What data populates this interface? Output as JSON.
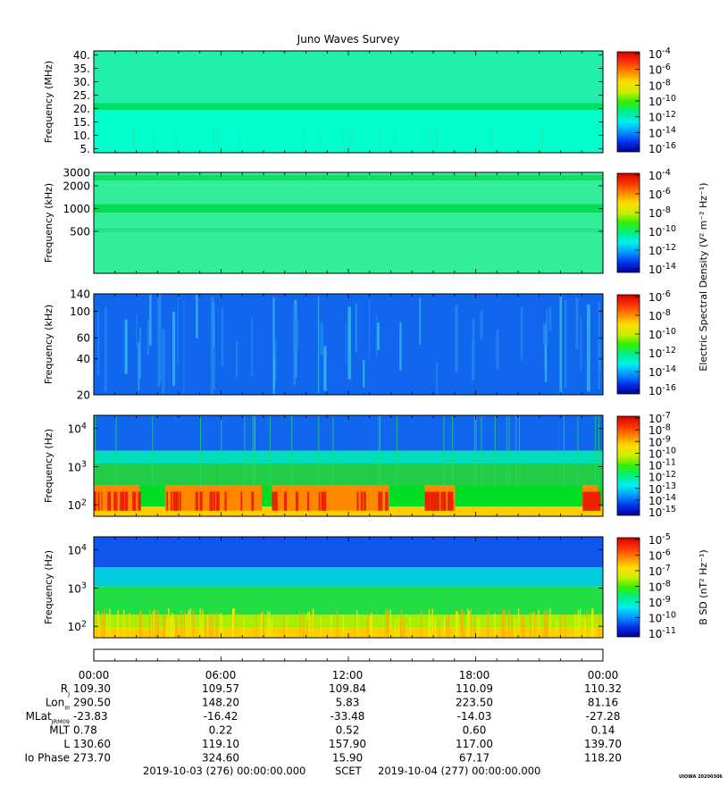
{
  "title": "Juno Waves Survey",
  "chart_data": [
    {
      "type": "heatmap",
      "name": "panel-1",
      "ylabel": "Frequency (MHz)",
      "ylim": [
        3.5,
        41.5
      ],
      "yscale": "linear",
      "yticks": [
        {
          "v": 40,
          "l": "40."
        },
        {
          "v": 35,
          "l": "35."
        },
        {
          "v": 30,
          "l": "30."
        },
        {
          "v": 25,
          "l": "25."
        },
        {
          "v": 20,
          "l": "20."
        },
        {
          "v": 15,
          "l": "15."
        },
        {
          "v": 10,
          "l": "10."
        },
        {
          "v": 5,
          "l": "5."
        }
      ],
      "colorbar": {
        "ticks": [
          {
            "m": "10",
            "e": "-4"
          },
          {
            "m": "10",
            "e": "-6"
          },
          {
            "m": "10",
            "e": "-8"
          },
          {
            "m": "10",
            "e": "-10"
          },
          {
            "m": "10",
            "e": "-12"
          },
          {
            "m": "10",
            "e": "-14"
          },
          {
            "m": "10",
            "e": "-16"
          }
        ],
        "label": ""
      },
      "bands": [
        {
          "f0": 3.5,
          "f1": 19.5,
          "c": "#00ffcc"
        },
        {
          "f0": 19.5,
          "f1": 22.0,
          "c": "#00dd66"
        },
        {
          "f0": 22.0,
          "f1": 41.5,
          "c": "#22f0a8"
        }
      ]
    },
    {
      "type": "heatmap",
      "name": "panel-2",
      "ylabel": "Frequency (kHz)",
      "ylim": [
        140,
        3000
      ],
      "yscale": "log",
      "yticks": [
        {
          "v": 3000,
          "l": "3000"
        },
        {
          "v": 2000,
          "l": "2000"
        },
        {
          "v": 1000,
          "l": "1000"
        },
        {
          "v": 500,
          "l": "500"
        }
      ],
      "colorbar": {
        "ticks": [
          {
            "m": "10",
            "e": "-4"
          },
          {
            "m": "10",
            "e": "-6"
          },
          {
            "m": "10",
            "e": "-8"
          },
          {
            "m": "10",
            "e": "-10"
          },
          {
            "m": "10",
            "e": "-12"
          },
          {
            "m": "10",
            "e": "-14"
          }
        ],
        "label": ""
      },
      "bands": [
        {
          "f0": 140,
          "f1": 480,
          "c": "#33ee99"
        },
        {
          "f0": 480,
          "f1": 560,
          "c": "#22e388"
        },
        {
          "f0": 560,
          "f1": 880,
          "c": "#33ee99"
        },
        {
          "f0": 880,
          "f1": 1150,
          "c": "#00dd55"
        },
        {
          "f0": 1150,
          "f1": 2350,
          "c": "#33ee99"
        },
        {
          "f0": 2350,
          "f1": 2800,
          "c": "#11dd66"
        },
        {
          "f0": 2800,
          "f1": 3000,
          "c": "#44eeaa"
        }
      ]
    },
    {
      "type": "heatmap",
      "name": "panel-3",
      "ylabel": "Frequency (kHz)",
      "ylim": [
        20,
        140
      ],
      "yscale": "log",
      "yticks": [
        {
          "v": 140,
          "l": "140"
        },
        {
          "v": 100,
          "l": "100"
        },
        {
          "v": 60,
          "l": "60"
        },
        {
          "v": 40,
          "l": "40"
        },
        {
          "v": 20,
          "l": "20"
        }
      ],
      "colorbar": {
        "ticks": [
          {
            "m": "10",
            "e": "-6"
          },
          {
            "m": "10",
            "e": "-8"
          },
          {
            "m": "10",
            "e": "-10"
          },
          {
            "m": "10",
            "e": "-12"
          },
          {
            "m": "10",
            "e": "-14"
          },
          {
            "m": "10",
            "e": "-16"
          }
        ],
        "label": "Electric Spectral Density (V² m⁻² Hz⁻¹)"
      },
      "bands": [
        {
          "f0": 20,
          "f1": 140,
          "c": "#1166ee"
        }
      ]
    },
    {
      "type": "heatmap",
      "name": "panel-4",
      "ylabel": "Frequency (Hz)",
      "ylim": [
        50,
        22000
      ],
      "yscale": "log",
      "yticks": [
        {
          "v": 10000,
          "m": "10",
          "e": "4"
        },
        {
          "v": 1000,
          "m": "10",
          "e": "3"
        },
        {
          "v": 100,
          "m": "10",
          "e": "2"
        }
      ],
      "colorbar": {
        "ticks": [
          {
            "m": "10",
            "e": "-7"
          },
          {
            "m": "10",
            "e": "-8"
          },
          {
            "m": "10",
            "e": "-9"
          },
          {
            "m": "10",
            "e": "-10"
          },
          {
            "m": "10",
            "e": "-11"
          },
          {
            "m": "10",
            "e": "-12"
          },
          {
            "m": "10",
            "e": "-13"
          },
          {
            "m": "10",
            "e": "-14"
          },
          {
            "m": "10",
            "e": "-15"
          }
        ],
        "label": ""
      },
      "bands": [
        {
          "f0": 50,
          "f1": 90,
          "c": "#ffcc00"
        },
        {
          "f0": 90,
          "f1": 320,
          "c": "#00dd22"
        },
        {
          "f0": 320,
          "f1": 1200,
          "c": "#22cc44"
        },
        {
          "f0": 1200,
          "f1": 2600,
          "c": "#00ddbb"
        },
        {
          "f0": 2600,
          "f1": 22000,
          "c": "#1166ee"
        }
      ]
    },
    {
      "type": "heatmap",
      "name": "panel-5",
      "ylabel": "Frequency (Hz)",
      "ylim": [
        50,
        22000
      ],
      "yscale": "log",
      "yticks": [
        {
          "v": 10000,
          "m": "10",
          "e": "4"
        },
        {
          "v": 1000,
          "m": "10",
          "e": "3"
        },
        {
          "v": 100,
          "m": "10",
          "e": "2"
        }
      ],
      "colorbar": {
        "ticks": [
          {
            "m": "10",
            "e": "-5"
          },
          {
            "m": "10",
            "e": "-6"
          },
          {
            "m": "10",
            "e": "-7"
          },
          {
            "m": "10",
            "e": "-8"
          },
          {
            "m": "10",
            "e": "-9"
          },
          {
            "m": "10",
            "e": "-10"
          },
          {
            "m": "10",
            "e": "-11"
          }
        ],
        "label": "B SD (nT² Hz⁻¹)"
      },
      "bands": [
        {
          "f0": 50,
          "f1": 90,
          "c": "#ffcc00"
        },
        {
          "f0": 90,
          "f1": 200,
          "c": "#aaee00"
        },
        {
          "f0": 200,
          "f1": 1100,
          "c": "#22dd44"
        },
        {
          "f0": 1100,
          "f1": 3500,
          "c": "#00ccdd"
        },
        {
          "f0": 3500,
          "f1": 22000,
          "c": "#1155ee"
        }
      ]
    }
  ],
  "ephemeris": {
    "times": [
      "00:00",
      "06:00",
      "12:00",
      "18:00",
      "00:00"
    ],
    "rows": [
      {
        "label": "R",
        "sub": "J",
        "values": [
          "109.30",
          "109.57",
          "109.84",
          "110.09",
          "110.32"
        ]
      },
      {
        "label": "Lon",
        "sub": "III",
        "values": [
          "290.50",
          "148.20",
          "5.83",
          "223.50",
          "81.16"
        ]
      },
      {
        "label": "MLat",
        "sub": "JRM09",
        "values": [
          "-23.83",
          "-16.42",
          "-33.48",
          "-14.03",
          "-27.28"
        ]
      },
      {
        "label": "MLT",
        "sub": "",
        "values": [
          "0.78",
          "0.22",
          "0.52",
          "0.60",
          "0.14"
        ]
      },
      {
        "label": "L",
        "sub": "",
        "values": [
          "130.60",
          "119.10",
          "157.90",
          "117.00",
          "139.70"
        ]
      },
      {
        "label": "Io Phase",
        "sub": "",
        "values": [
          "273.70",
          "324.60",
          "15.90",
          "67.17",
          "118.20"
        ]
      }
    ]
  },
  "footer": {
    "start": "2019-10-03 (276) 00:00:00.000",
    "scet": "SCET",
    "end": "2019-10-04 (277) 00:00:00.000",
    "credit": "UIOWA 20200306"
  }
}
